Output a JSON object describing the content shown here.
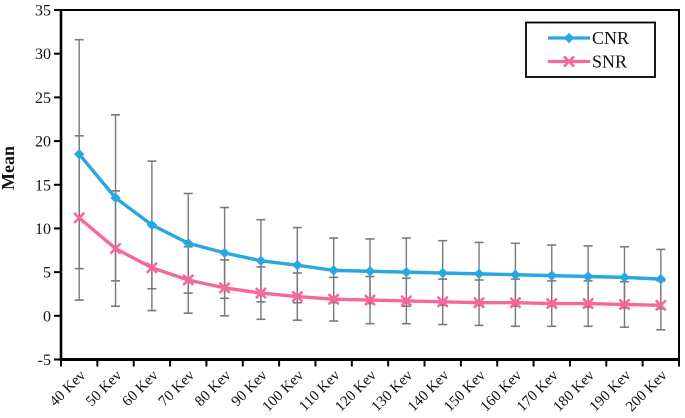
{
  "figure": {
    "background": "#ffffff",
    "axis_color": "#000000",
    "text_color": "#111111"
  },
  "legend": {
    "position": "top-right",
    "border_color": "#000000",
    "items": [
      {
        "label": "CNR",
        "color": "#2AA7E0",
        "marker": "diamond"
      },
      {
        "label": "SNR",
        "color": "#F7679E",
        "marker": "x"
      }
    ]
  },
  "chart_data": {
    "type": "line",
    "title": "",
    "xlabel": "",
    "ylabel": "Mean",
    "ylim": [
      -5,
      35
    ],
    "ytick_step": 5,
    "yticks": [
      35,
      30,
      25,
      20,
      15,
      10,
      5,
      0,
      -5
    ],
    "grid": false,
    "legend_position": "top-right",
    "error_bar_color": "#7a7a7a",
    "categories": [
      "40 Kev",
      "50 Kev",
      "60 Kev",
      "70 Kev",
      "80 Kev",
      "90 Kev",
      "100 Kev",
      "110 Kev",
      "120 Kev",
      "130 Kev",
      "140 Kev",
      "150 Kev",
      "160 Kev",
      "170 Kev",
      "180 Kev",
      "190 Kev",
      "200 Kev"
    ],
    "series": [
      {
        "name": "CNR",
        "color": "#2AA7E0",
        "marker": "diamond",
        "values": [
          18.5,
          13.5,
          10.4,
          8.3,
          7.2,
          6.3,
          5.8,
          5.2,
          5.1,
          5.0,
          4.9,
          4.8,
          4.7,
          4.6,
          4.5,
          4.4,
          4.2
        ],
        "error": [
          13.1,
          9.5,
          7.3,
          5.7,
          5.2,
          4.7,
          4.3,
          3.7,
          3.7,
          3.9,
          3.7,
          3.6,
          3.6,
          3.5,
          3.5,
          3.5,
          3.4
        ]
      },
      {
        "name": "SNR",
        "color": "#F7679E",
        "marker": "x",
        "values": [
          11.2,
          7.7,
          5.5,
          4.1,
          3.2,
          2.6,
          2.2,
          1.9,
          1.8,
          1.7,
          1.6,
          1.5,
          1.5,
          1.4,
          1.4,
          1.3,
          1.2
        ],
        "error": [
          9.4,
          6.6,
          4.9,
          3.8,
          3.2,
          3.0,
          2.7,
          2.5,
          2.7,
          2.6,
          2.6,
          2.6,
          2.7,
          2.6,
          2.6,
          2.6,
          2.8
        ]
      }
    ]
  }
}
